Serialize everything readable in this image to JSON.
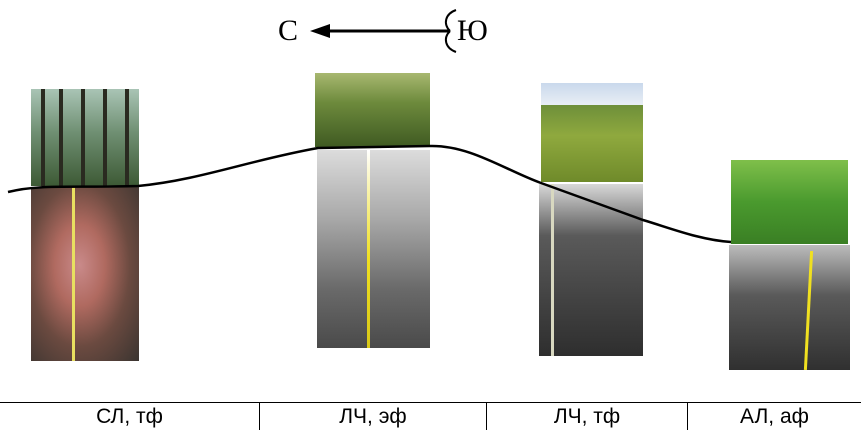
{
  "compass": {
    "north_label": "С",
    "south_label": "Ю",
    "arrow_direction": "south-to-north",
    "arrow_icon": "left-arrow-icon"
  },
  "profiles": [
    {
      "caption": "СЛ, тф",
      "landscape": "forest",
      "soil_highlight_color": "#c98a8a",
      "tape_color": "#e8e060"
    },
    {
      "caption": "ЛЧ, эф",
      "landscape": "meadow",
      "soil_highlight_color": "#dcdcdc",
      "tape_color": "#f0e020"
    },
    {
      "caption": "ЛЧ, тф",
      "landscape": "field",
      "soil_highlight_color": "#d8d8d8",
      "tape_color": "#d8d8c0"
    },
    {
      "caption": "АЛ, аф",
      "landscape": "lawn",
      "soil_highlight_color": "#bcbcbc",
      "tape_color": "#f0e020"
    }
  ],
  "colors": {
    "terrain_line": "#000000",
    "caption_rule": "#000000",
    "background": "#ffffff"
  }
}
